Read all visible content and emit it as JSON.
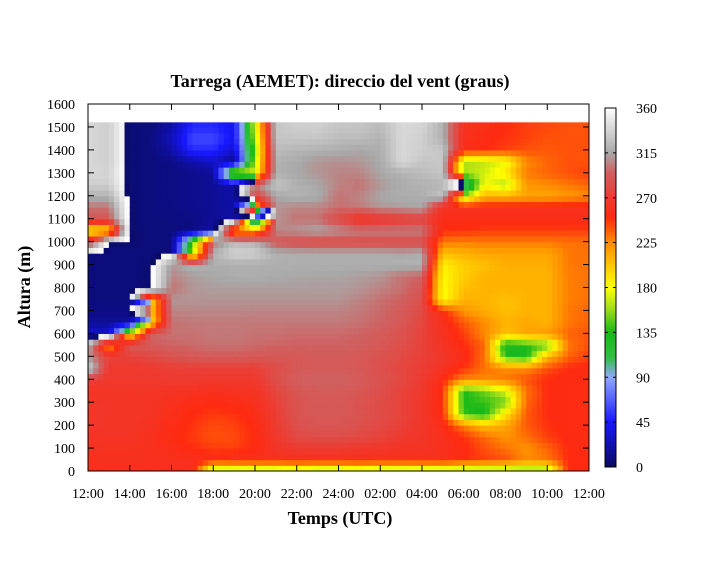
{
  "chart_data": {
    "type": "heatmap",
    "title": "Tarrega (AEMET): direccio del vent (graus)",
    "xlabel": "Temps (UTC)",
    "ylabel": "Altura (m)",
    "xlim": [
      0,
      24
    ],
    "ylim": [
      0,
      1600
    ],
    "x_ticks": [
      {
        "label": "12:00",
        "value": 0
      },
      {
        "label": "14:00",
        "value": 2
      },
      {
        "label": "16:00",
        "value": 4
      },
      {
        "label": "18:00",
        "value": 6
      },
      {
        "label": "20:00",
        "value": 8
      },
      {
        "label": "22:00",
        "value": 10
      },
      {
        "label": "24:00",
        "value": 12
      },
      {
        "label": "02:00",
        "value": 14
      },
      {
        "label": "04:00",
        "value": 16
      },
      {
        "label": "06:00",
        "value": 18
      },
      {
        "label": "08:00",
        "value": 20
      },
      {
        "label": "10:00",
        "value": 22
      },
      {
        "label": "12:00",
        "value": 24
      }
    ],
    "y_ticks": [
      0,
      100,
      200,
      300,
      400,
      500,
      600,
      700,
      800,
      900,
      1000,
      1100,
      1200,
      1300,
      1400,
      1500,
      1600
    ],
    "colorbar": {
      "range": [
        0,
        360
      ],
      "ticks": [
        0,
        45,
        90,
        135,
        180,
        225,
        270,
        315,
        360
      ],
      "stops": [
        {
          "v": 0,
          "color": "#0a0a60"
        },
        {
          "v": 22,
          "color": "#1010b0"
        },
        {
          "v": 45,
          "color": "#1818ff"
        },
        {
          "v": 90,
          "color": "#8fa8ff"
        },
        {
          "v": 110,
          "color": "#30c040"
        },
        {
          "v": 135,
          "color": "#18b818"
        },
        {
          "v": 160,
          "color": "#a8e018"
        },
        {
          "v": 180,
          "color": "#ffff00"
        },
        {
          "v": 205,
          "color": "#ffc000"
        },
        {
          "v": 225,
          "color": "#ff8c00"
        },
        {
          "v": 250,
          "color": "#ff2a10"
        },
        {
          "v": 270,
          "color": "#ee3a30"
        },
        {
          "v": 295,
          "color": "#d06060"
        },
        {
          "v": 315,
          "color": "#a8a8a8"
        },
        {
          "v": 340,
          "color": "#d8d8d8"
        },
        {
          "v": 360,
          "color": "#ffffff"
        }
      ]
    },
    "data_top": 1520,
    "y_levels": [
      0,
      50,
      100,
      150,
      200,
      250,
      300,
      350,
      400,
      450,
      500,
      550,
      600,
      650,
      700,
      750,
      800,
      850,
      900,
      950,
      1000,
      1050,
      1100,
      1150,
      1200,
      1250,
      1300,
      1350,
      1400,
      1450,
      1500
    ],
    "times": [
      0,
      1,
      2,
      3,
      4,
      5,
      6,
      7,
      8,
      9,
      10,
      11,
      12,
      13,
      14,
      15,
      16,
      17,
      18,
      19,
      20,
      21,
      22,
      23,
      24
    ],
    "values": [
      [
        258,
        258,
        258,
        258,
        258,
        258,
        150,
        150,
        150,
        150,
        158,
        150,
        150,
        158,
        150,
        150,
        150,
        150,
        150,
        150,
        150,
        150,
        150,
        250,
        250
      ],
      [
        258,
        258,
        258,
        258,
        258,
        258,
        256,
        258,
        258,
        258,
        258,
        258,
        258,
        258,
        258,
        258,
        258,
        258,
        250,
        245,
        240,
        225,
        230,
        250,
        250
      ],
      [
        262,
        260,
        260,
        258,
        255,
        250,
        245,
        245,
        250,
        265,
        270,
        270,
        270,
        268,
        265,
        262,
        262,
        258,
        252,
        240,
        232,
        222,
        235,
        250,
        252
      ],
      [
        264,
        262,
        262,
        258,
        252,
        246,
        240,
        242,
        250,
        268,
        280,
        283,
        283,
        280,
        276,
        270,
        264,
        258,
        248,
        234,
        222,
        232,
        245,
        252,
        252
      ],
      [
        266,
        264,
        264,
        260,
        254,
        248,
        242,
        244,
        252,
        270,
        285,
        288,
        288,
        285,
        280,
        274,
        266,
        255,
        228,
        205,
        215,
        238,
        248,
        252,
        252
      ],
      [
        266,
        264,
        264,
        262,
        256,
        250,
        246,
        248,
        254,
        272,
        287,
        290,
        290,
        287,
        282,
        276,
        266,
        250,
        140,
        130,
        190,
        238,
        250,
        252,
        252
      ],
      [
        265,
        264,
        264,
        262,
        258,
        254,
        252,
        254,
        258,
        274,
        287,
        290,
        290,
        287,
        282,
        276,
        266,
        248,
        135,
        140,
        150,
        235,
        250,
        252,
        252
      ],
      [
        264,
        264,
        264,
        264,
        262,
        260,
        258,
        260,
        262,
        278,
        288,
        292,
        292,
        289,
        284,
        276,
        268,
        248,
        135,
        150,
        170,
        232,
        250,
        252,
        252
      ],
      [
        275,
        268,
        268,
        268,
        270,
        270,
        268,
        268,
        268,
        284,
        294,
        296,
        296,
        292,
        286,
        280,
        270,
        252,
        225,
        225,
        230,
        240,
        250,
        252,
        252
      ],
      [
        340,
        268,
        268,
        270,
        272,
        274,
        274,
        274,
        274,
        282,
        290,
        292,
        292,
        290,
        285,
        278,
        272,
        262,
        248,
        232,
        224,
        225,
        240,
        250,
        252
      ],
      [
        310,
        275,
        275,
        280,
        286,
        290,
        292,
        292,
        290,
        290,
        290,
        292,
        292,
        290,
        286,
        280,
        274,
        266,
        255,
        232,
        140,
        130,
        210,
        235,
        245
      ],
      [
        320,
        215,
        290,
        292,
        296,
        298,
        300,
        300,
        298,
        296,
        295,
        295,
        295,
        294,
        290,
        284,
        275,
        262,
        250,
        235,
        125,
        135,
        145,
        230,
        240
      ],
      [
        30,
        30,
        180,
        296,
        300,
        300,
        302,
        302,
        300,
        300,
        298,
        298,
        298,
        296,
        292,
        286,
        276,
        260,
        245,
        225,
        205,
        215,
        220,
        235,
        240
      ],
      [
        15,
        15,
        15,
        190,
        300,
        302,
        302,
        302,
        302,
        302,
        302,
        302,
        302,
        300,
        296,
        290,
        278,
        258,
        238,
        225,
        210,
        215,
        210,
        230,
        235
      ],
      [
        10,
        10,
        10,
        200,
        305,
        306,
        306,
        306,
        305,
        305,
        305,
        305,
        305,
        302,
        298,
        292,
        280,
        250,
        222,
        212,
        205,
        210,
        210,
        230,
        235
      ],
      [
        8,
        8,
        8,
        190,
        310,
        310,
        310,
        310,
        310,
        310,
        310,
        310,
        310,
        305,
        300,
        295,
        285,
        178,
        210,
        210,
        205,
        210,
        210,
        228,
        232
      ],
      [
        8,
        8,
        8,
        5,
        300,
        310,
        312,
        312,
        312,
        312,
        312,
        312,
        312,
        310,
        305,
        300,
        290,
        180,
        205,
        210,
        210,
        210,
        210,
        228,
        232
      ],
      [
        8,
        8,
        8,
        5,
        305,
        312,
        315,
        318,
        318,
        316,
        315,
        314,
        314,
        312,
        310,
        300,
        295,
        182,
        200,
        210,
        210,
        210,
        210,
        228,
        232
      ],
      [
        8,
        8,
        8,
        5,
        310,
        320,
        318,
        318,
        318,
        318,
        318,
        318,
        318,
        318,
        318,
        320,
        320,
        185,
        200,
        205,
        212,
        212,
        212,
        230,
        232
      ],
      [
        8,
        8,
        8,
        8,
        6,
        160,
        320,
        338,
        335,
        320,
        318,
        318,
        318,
        318,
        318,
        315,
        318,
        205,
        210,
        215,
        215,
        215,
        215,
        230,
        232
      ],
      [
        270,
        5,
        5,
        8,
        8,
        150,
        300,
        325,
        320,
        290,
        285,
        282,
        282,
        282,
        282,
        282,
        282,
        230,
        228,
        230,
        230,
        230,
        230,
        232,
        232
      ],
      [
        180,
        190,
        5,
        8,
        8,
        10,
        20,
        210,
        210,
        305,
        310,
        315,
        310,
        305,
        305,
        305,
        305,
        250,
        248,
        245,
        245,
        245,
        245,
        245,
        245
      ],
      [
        290,
        290,
        6,
        8,
        8,
        10,
        15,
        18,
        40,
        310,
        300,
        300,
        280,
        260,
        265,
        270,
        275,
        255,
        255,
        255,
        255,
        255,
        255,
        255,
        255
      ],
      [
        300,
        300,
        6,
        8,
        10,
        12,
        15,
        20,
        200,
        310,
        305,
        305,
        300,
        302,
        310,
        312,
        315,
        260,
        260,
        258,
        258,
        258,
        258,
        258,
        258
      ],
      [
        320,
        320,
        6,
        8,
        10,
        12,
        15,
        20,
        280,
        315,
        320,
        318,
        300,
        305,
        315,
        318,
        318,
        330,
        160,
        210,
        210,
        215,
        215,
        220,
        225
      ],
      [
        335,
        335,
        6,
        8,
        10,
        12,
        15,
        20,
        300,
        330,
        320,
        315,
        305,
        300,
        310,
        318,
        320,
        322,
        80,
        180,
        160,
        220,
        225,
        230,
        235
      ],
      [
        340,
        338,
        6,
        8,
        10,
        12,
        15,
        180,
        170,
        320,
        315,
        310,
        305,
        305,
        315,
        320,
        325,
        330,
        160,
        170,
        190,
        230,
        235,
        240,
        245
      ],
      [
        340,
        335,
        6,
        8,
        10,
        20,
        30,
        10,
        160,
        320,
        316,
        310,
        308,
        310,
        316,
        340,
        330,
        332,
        160,
        165,
        175,
        225,
        235,
        240,
        240
      ],
      [
        340,
        335,
        6,
        8,
        20,
        50,
        50,
        30,
        150,
        325,
        322,
        320,
        318,
        315,
        318,
        340,
        335,
        330,
        255,
        250,
        245,
        240,
        238,
        240,
        240
      ],
      [
        340,
        335,
        6,
        8,
        25,
        60,
        60,
        40,
        160,
        330,
        330,
        330,
        325,
        325,
        320,
        340,
        335,
        320,
        258,
        252,
        248,
        244,
        240,
        240,
        240
      ],
      [
        340,
        335,
        6,
        8,
        20,
        50,
        50,
        40,
        170,
        330,
        335,
        335,
        330,
        330,
        325,
        340,
        338,
        320,
        260,
        255,
        250,
        245,
        242,
        240,
        240
      ]
    ]
  }
}
